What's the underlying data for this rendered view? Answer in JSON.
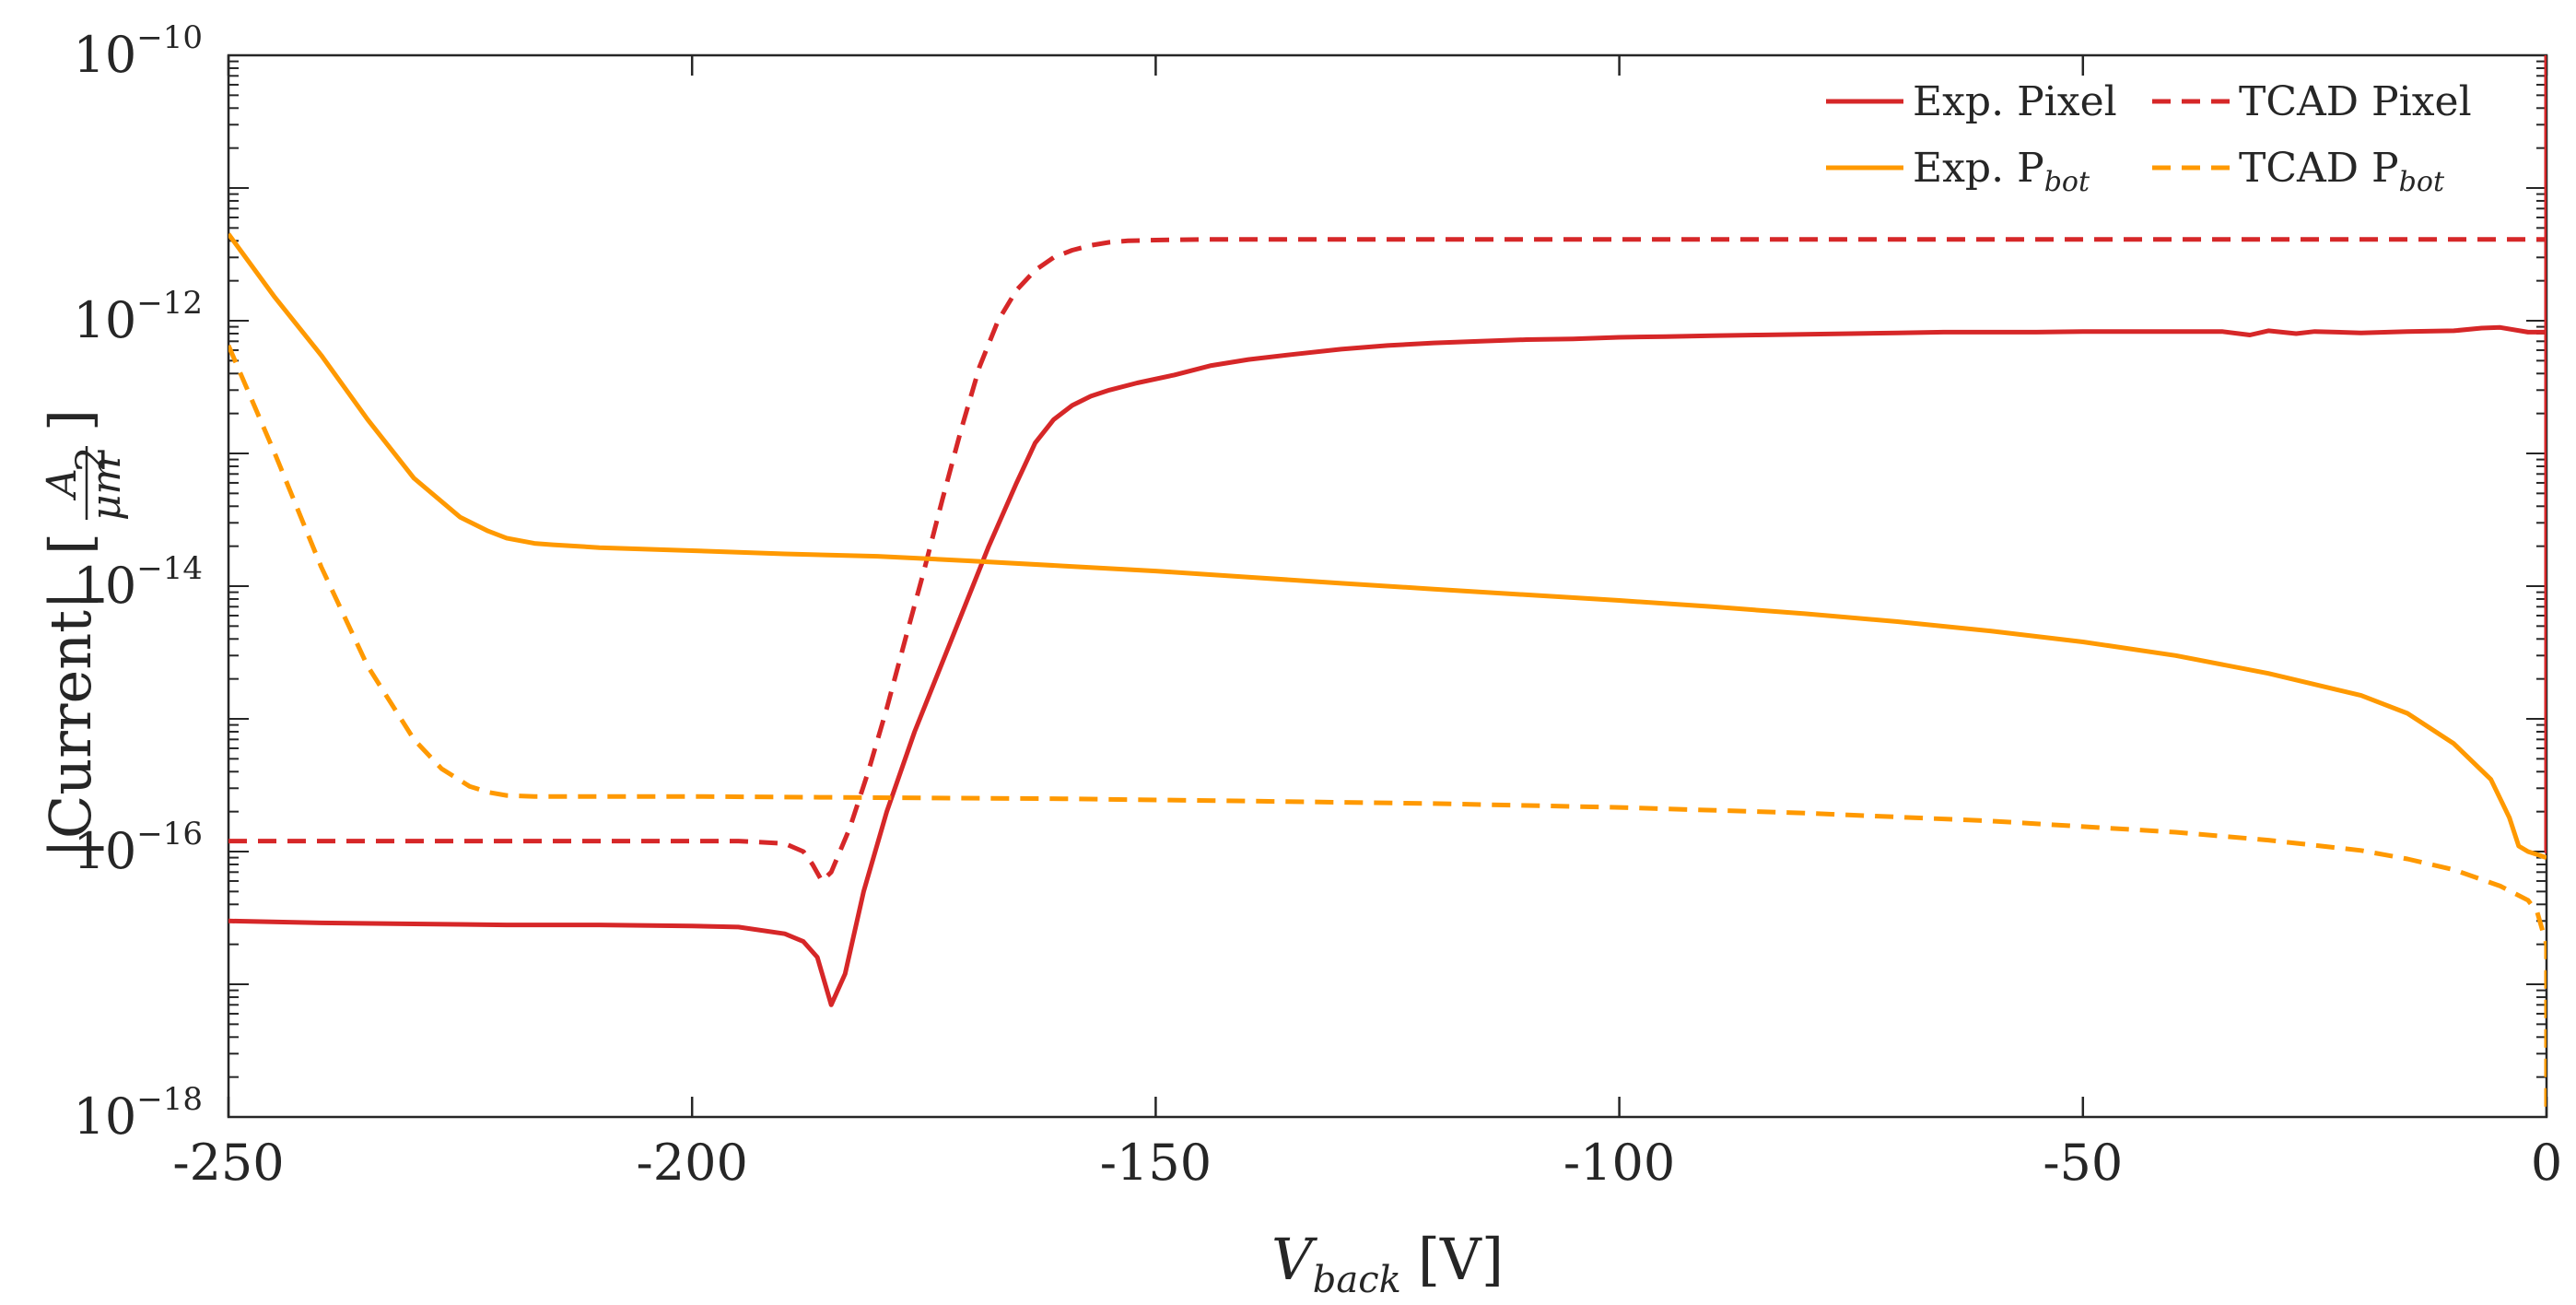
{
  "chart_data": {
    "type": "line",
    "title": "",
    "xlabel": {
      "main": "V",
      "sub": "back",
      "unit": "[V]"
    },
    "ylabel": {
      "main": "|Current|",
      "frac_num": "A",
      "frac_den": "μm",
      "frac_den_exp": "2"
    },
    "yscale": "log",
    "xlim": [
      -250,
      0
    ],
    "ylim": [
      1e-18,
      1e-10
    ],
    "xticks": [
      -250,
      -200,
      -150,
      -100,
      -50,
      0
    ],
    "xtick_labels": [
      "-250",
      "-200",
      "-150",
      "-100",
      "-50",
      "0"
    ],
    "yticks": [
      {
        "base": "10",
        "exp": "−18",
        "value": 1e-18
      },
      {
        "base": "10",
        "exp": "−16",
        "value": 1e-16
      },
      {
        "base": "10",
        "exp": "−14",
        "value": 1e-14
      },
      {
        "base": "10",
        "exp": "−12",
        "value": 1e-12
      },
      {
        "base": "10",
        "exp": "−10",
        "value": 1e-10
      }
    ],
    "legend_position": "top-right",
    "series": [
      {
        "name": "Exp. Pixel",
        "label_main": "Exp. Pixel",
        "label_sub": "",
        "color": "#d62728",
        "dash": "solid",
        "x": [
          -250,
          -240,
          -230,
          -220,
          -210,
          -200,
          -195,
          -190,
          -188,
          -186.5,
          -185,
          -183.5,
          -181.5,
          -179,
          -176,
          -172,
          -168,
          -165,
          -163,
          -161,
          -159,
          -157,
          -155,
          -152,
          -148,
          -144,
          -140,
          -135,
          -130,
          -125,
          -120,
          -115,
          -110,
          -105,
          -100,
          -95,
          -90,
          -85,
          -80,
          -75,
          -70,
          -65,
          -60,
          -55,
          -50,
          -45,
          -40,
          -35,
          -32,
          -30,
          -27,
          -25,
          -20,
          -15,
          -10,
          -7,
          -5,
          -2,
          0,
          0,
          0
        ],
        "y": [
          3e-17,
          2.9e-17,
          2.85e-17,
          2.8e-17,
          2.8e-17,
          2.75e-17,
          2.7e-17,
          2.4e-17,
          2.1e-17,
          1.6e-17,
          7e-18,
          1.2e-17,
          5e-17,
          2e-16,
          8e-16,
          4e-15,
          2e-14,
          6e-14,
          1.2e-13,
          1.8e-13,
          2.3e-13,
          2.7e-13,
          3e-13,
          3.4e-13,
          3.9e-13,
          4.6e-13,
          5.1e-13,
          5.6e-13,
          6.1e-13,
          6.5e-13,
          6.8e-13,
          7e-13,
          7.2e-13,
          7.3e-13,
          7.5e-13,
          7.6e-13,
          7.7e-13,
          7.8e-13,
          7.9e-13,
          8e-13,
          8.1e-13,
          8.2e-13,
          8.2e-13,
          8.2e-13,
          8.3e-13,
          8.3e-13,
          8.3e-13,
          8.3e-13,
          7.8e-13,
          8.4e-13,
          8e-13,
          8.3e-13,
          8.1e-13,
          8.3e-13,
          8.4e-13,
          8.8e-13,
          8.9e-13,
          8.2e-13,
          8.2e-13,
          3e-12,
          1e-10
        ]
      },
      {
        "name": "TCAD Pixel",
        "label_main": "TCAD Pixel",
        "label_sub": "",
        "color": "#d62728",
        "dash": "dashed",
        "x": [
          -250,
          -230,
          -210,
          -195,
          -190,
          -188,
          -187,
          -186,
          -185,
          -183,
          -181,
          -179,
          -177,
          -175,
          -173,
          -171,
          -169,
          -167,
          -165,
          -163,
          -161,
          -159,
          -157,
          -155,
          -153,
          -150,
          -145,
          -140,
          -130,
          -120,
          -100,
          -80,
          -60,
          -40,
          -20,
          -5,
          0,
          0,
          0
        ],
        "y": [
          1.2e-16,
          1.2e-16,
          1.2e-16,
          1.2e-16,
          1.15e-16,
          1e-16,
          8e-17,
          6e-17,
          7e-17,
          1.5e-16,
          4e-16,
          1.2e-15,
          4e-15,
          1.3e-14,
          4.5e-14,
          1.5e-13,
          4.5e-13,
          1e-12,
          1.7e-12,
          2.4e-12,
          3e-12,
          3.4e-12,
          3.7e-12,
          3.9e-12,
          4e-12,
          4.05e-12,
          4.1e-12,
          4.1e-12,
          4.1e-12,
          4.1e-12,
          4.1e-12,
          4.1e-12,
          4.1e-12,
          4.1e-12,
          4.1e-12,
          4.1e-12,
          4.1e-12,
          1e-16,
          1e-10
        ]
      },
      {
        "name": "Exp. P_bot",
        "label_main": "Exp. P",
        "label_sub": "bot",
        "color": "#ff9900",
        "dash": "solid",
        "x": [
          -250,
          -245,
          -240,
          -235,
          -230,
          -225,
          -222,
          -220,
          -217,
          -215,
          -210,
          -200,
          -190,
          -180,
          -170,
          -160,
          -150,
          -140,
          -130,
          -120,
          -110,
          -100,
          -90,
          -80,
          -70,
          -60,
          -50,
          -40,
          -30,
          -20,
          -15,
          -10,
          -6,
          -4,
          -3,
          -2,
          -1,
          0
        ],
        "y": [
          4.5e-12,
          1.5e-12,
          5.5e-13,
          1.8e-13,
          6.5e-14,
          3.3e-14,
          2.6e-14,
          2.3e-14,
          2.1e-14,
          2.05e-14,
          1.95e-14,
          1.85e-14,
          1.75e-14,
          1.68e-14,
          1.55e-14,
          1.42e-14,
          1.3e-14,
          1.17e-14,
          1.05e-14,
          9.5e-15,
          8.6e-15,
          7.8e-15,
          7e-15,
          6.2e-15,
          5.4e-15,
          4.6e-15,
          3.8e-15,
          3e-15,
          2.2e-15,
          1.5e-15,
          1.1e-15,
          6.5e-16,
          3.5e-16,
          1.8e-16,
          1.1e-16,
          1e-16,
          9.5e-17,
          9e-17
        ]
      },
      {
        "name": "TCAD P_bot",
        "label_main": "TCAD P",
        "label_sub": "bot",
        "color": "#ff9900",
        "dash": "dashed",
        "x": [
          -250,
          -245,
          -240,
          -235,
          -230,
          -227,
          -224,
          -222,
          -220,
          -217,
          -215,
          -200,
          -180,
          -160,
          -140,
          -120,
          -100,
          -80,
          -60,
          -40,
          -30,
          -20,
          -15,
          -10,
          -5,
          -2,
          -1,
          0,
          0
        ],
        "y": [
          6.5e-13,
          1e-13,
          1.4e-14,
          2.5e-15,
          7e-16,
          4.2e-16,
          3.1e-16,
          2.8e-16,
          2.65e-16,
          2.6e-16,
          2.6e-16,
          2.6e-16,
          2.55e-16,
          2.5e-16,
          2.4e-16,
          2.3e-16,
          2.15e-16,
          1.95e-16,
          1.7e-16,
          1.4e-16,
          1.22e-16,
          1.02e-16,
          8.8e-17,
          7.3e-17,
          5.5e-17,
          4.3e-17,
          3.5e-17,
          2e-17,
          1e-18
        ]
      }
    ]
  }
}
